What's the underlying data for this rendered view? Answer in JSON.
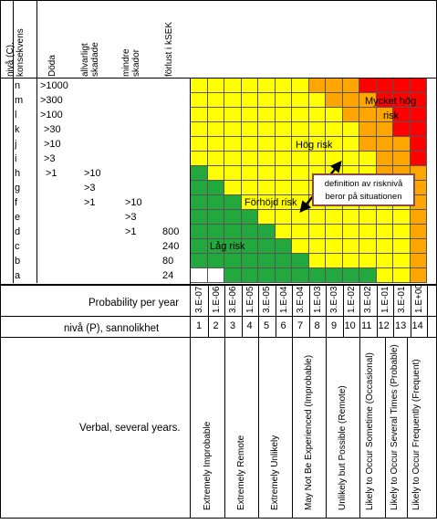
{
  "header": {
    "axis_title": "nivå (C), konsekvens",
    "columns": [
      "Döda",
      "allvarligt skadade",
      "mindre skador",
      "förlust i kSEK"
    ]
  },
  "rows": [
    {
      "level": "n",
      "values": [
        ">1000",
        "",
        "",
        ""
      ]
    },
    {
      "level": "m",
      "values": [
        ">300",
        "",
        "",
        ""
      ]
    },
    {
      "level": "l",
      "values": [
        ">100",
        "",
        "",
        ""
      ]
    },
    {
      "level": "k",
      "values": [
        ">30",
        "",
        "",
        ""
      ]
    },
    {
      "level": "j",
      "values": [
        ">10",
        "",
        "",
        ""
      ]
    },
    {
      "level": "i",
      "values": [
        ">3",
        "",
        "",
        ""
      ]
    },
    {
      "level": "h",
      "values": [
        ">1",
        ">10",
        "",
        ""
      ]
    },
    {
      "level": "g",
      "values": [
        "",
        ">3",
        "",
        ""
      ]
    },
    {
      "level": "f",
      "values": [
        "",
        ">1",
        ">10",
        ""
      ]
    },
    {
      "level": "e",
      "values": [
        "",
        "",
        ">3",
        ""
      ]
    },
    {
      "level": "d",
      "values": [
        "",
        "",
        ">1",
        "800"
      ]
    },
    {
      "level": "c",
      "values": [
        "",
        "",
        "",
        "240"
      ]
    },
    {
      "level": "b",
      "values": [
        "",
        "",
        "",
        "80"
      ]
    },
    {
      "level": "a",
      "values": [
        "",
        "",
        "",
        "24"
      ]
    }
  ],
  "colors": {
    "white": "#ffffff",
    "green": "#22a83c",
    "yellow": "#ffff00",
    "orange": "#ffa500",
    "red": "#ff0000"
  },
  "matrix": [
    "YYYYYYYOOORRRR",
    "YYYYYYYYOOORRR",
    "YYYYYYYYYOOORR",
    "YYYYYYYYYYOORR",
    "YYYYYYYYYYOOOR",
    "YYYYYYYYYYYOOR",
    "GYYYYYYYYYYOOO",
    "GGYYYYYYYYYYOO",
    "GGGYYYYYYYYYYO",
    "GGGGYYYYYYYYYO",
    "GGGGGYYYYYYYYO",
    "GGGGGGYYYYYYYO",
    "GGGGGGGYYYYYYO",
    "WWGGGGGGGGGYYO"
  ],
  "risk_labels": {
    "very_high_line1": "Mycket hög",
    "very_high_line2": "risk",
    "high": "Hög risk",
    "elevated": "Förhöjd risk",
    "low": "Låg risk"
  },
  "note": {
    "line1": "definition av risknivå",
    "line2": "beror på situationen"
  },
  "probability": {
    "label": "Probability per year",
    "values": [
      "3.E-07",
      "1.E-06",
      "3.E-06",
      "1.E-05",
      "3.E-05",
      "1.E-04",
      "3.E-04",
      "1.E-03",
      "3.E-03",
      "1.E-02",
      "3.E-02",
      "1.E-01",
      "3.E-01",
      "1.E+00"
    ]
  },
  "level_p": {
    "label": "nivå (P), sannolikhet",
    "values": [
      "1",
      "2",
      "3",
      "4",
      "5",
      "6",
      "7",
      "8",
      "9",
      "10",
      "11",
      "12",
      "13",
      "14"
    ]
  },
  "verbal": {
    "label": "Verbal, several years.",
    "items": [
      {
        "text": "Extremely Improbable"
      },
      {
        "text": "Extremely Remote"
      },
      {
        "text": "Extremely Unlikely"
      },
      {
        "text": "May Not Be Experienced (Improbable)"
      },
      {
        "text": "Unlikely but Possible (Remote)"
      },
      {
        "text": "Likely to Occur Sometime (Occasional)"
      },
      {
        "text": "Likely to Occur Several Times (Probable)"
      },
      {
        "text": "Likely to Occur Frequently (Frequent)"
      }
    ]
  }
}
